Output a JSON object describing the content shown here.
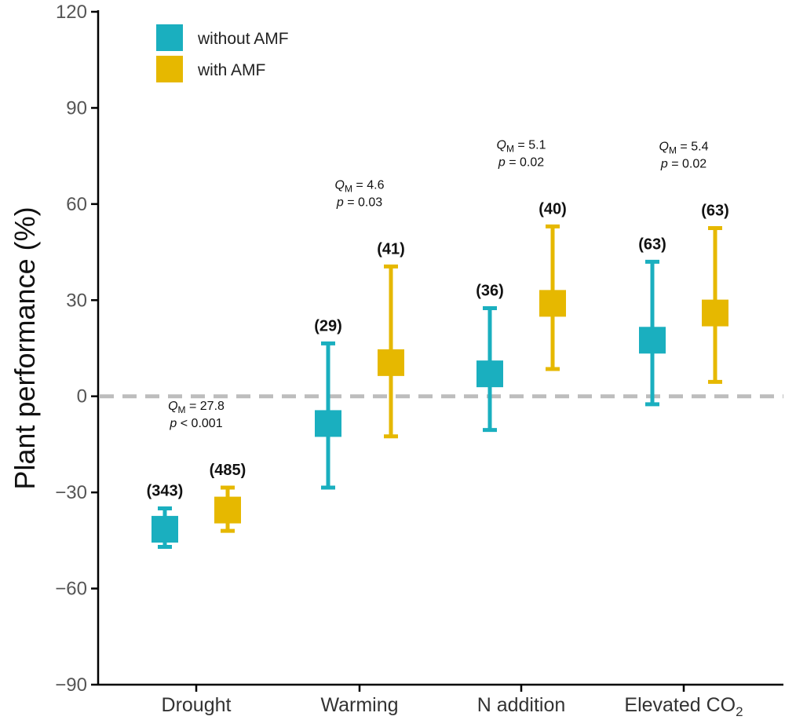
{
  "chart_data": {
    "type": "errorbar",
    "title": "",
    "xlabel": "",
    "ylabel": "Plant performance (%)",
    "ylim": [
      -90,
      120
    ],
    "yticks": [
      -90,
      -60,
      -30,
      0,
      30,
      60,
      90,
      120
    ],
    "ytick_labels": [
      "−90",
      "−60",
      "−30",
      "0",
      "30",
      "60",
      "90",
      "120"
    ],
    "reference_line": 0,
    "categories": [
      "Drought",
      "Warming",
      "N addition",
      "Elevated CO2"
    ],
    "category_labels": [
      {
        "main": "Drought",
        "sub": ""
      },
      {
        "main": "Warming",
        "sub": ""
      },
      {
        "main": "N addition",
        "sub": ""
      },
      {
        "main": "Elevated CO",
        "sub": "2"
      }
    ],
    "series": [
      {
        "name": "without AMF",
        "color": "#1aafbf",
        "values": [
          -41.5,
          -8.5,
          7,
          17.5
        ],
        "lower": [
          -47,
          -28.5,
          -10.5,
          -2.5
        ],
        "upper": [
          -35,
          16.5,
          27.5,
          42
        ],
        "n": [
          "(343)",
          "(29)",
          "(36)",
          "(63)"
        ]
      },
      {
        "name": "with AMF",
        "color": "#e6b800",
        "values": [
          -35.5,
          10.5,
          29,
          26
        ],
        "lower": [
          -42,
          -12.5,
          8.5,
          4.5
        ],
        "upper": [
          -28.5,
          40.5,
          53,
          52.5
        ],
        "n": [
          "(485)",
          "(41)",
          "(40)",
          "(63)"
        ]
      }
    ],
    "annotations": [
      {
        "category": "Drought",
        "q_label": "Q",
        "q_sub": "M",
        "q_value": " = 27.8",
        "p_label": "p",
        "p_value": " < 0.001"
      },
      {
        "category": "Warming",
        "q_label": "Q",
        "q_sub": "M",
        "q_value": " = 4.6",
        "p_label": "p",
        "p_value": " = 0.03"
      },
      {
        "category": "N addition",
        "q_label": "Q",
        "q_sub": "M",
        "q_value": " = 5.1",
        "p_label": "p",
        "p_value": " = 0.02"
      },
      {
        "category": "Elevated CO2",
        "q_label": "Q",
        "q_sub": "M",
        "q_value": " = 5.4",
        "p_label": "p",
        "p_value": " = 0.02"
      }
    ],
    "legend": {
      "position": "top-left",
      "entries": [
        "without AMF",
        "with AMF"
      ]
    },
    "grid": false
  }
}
